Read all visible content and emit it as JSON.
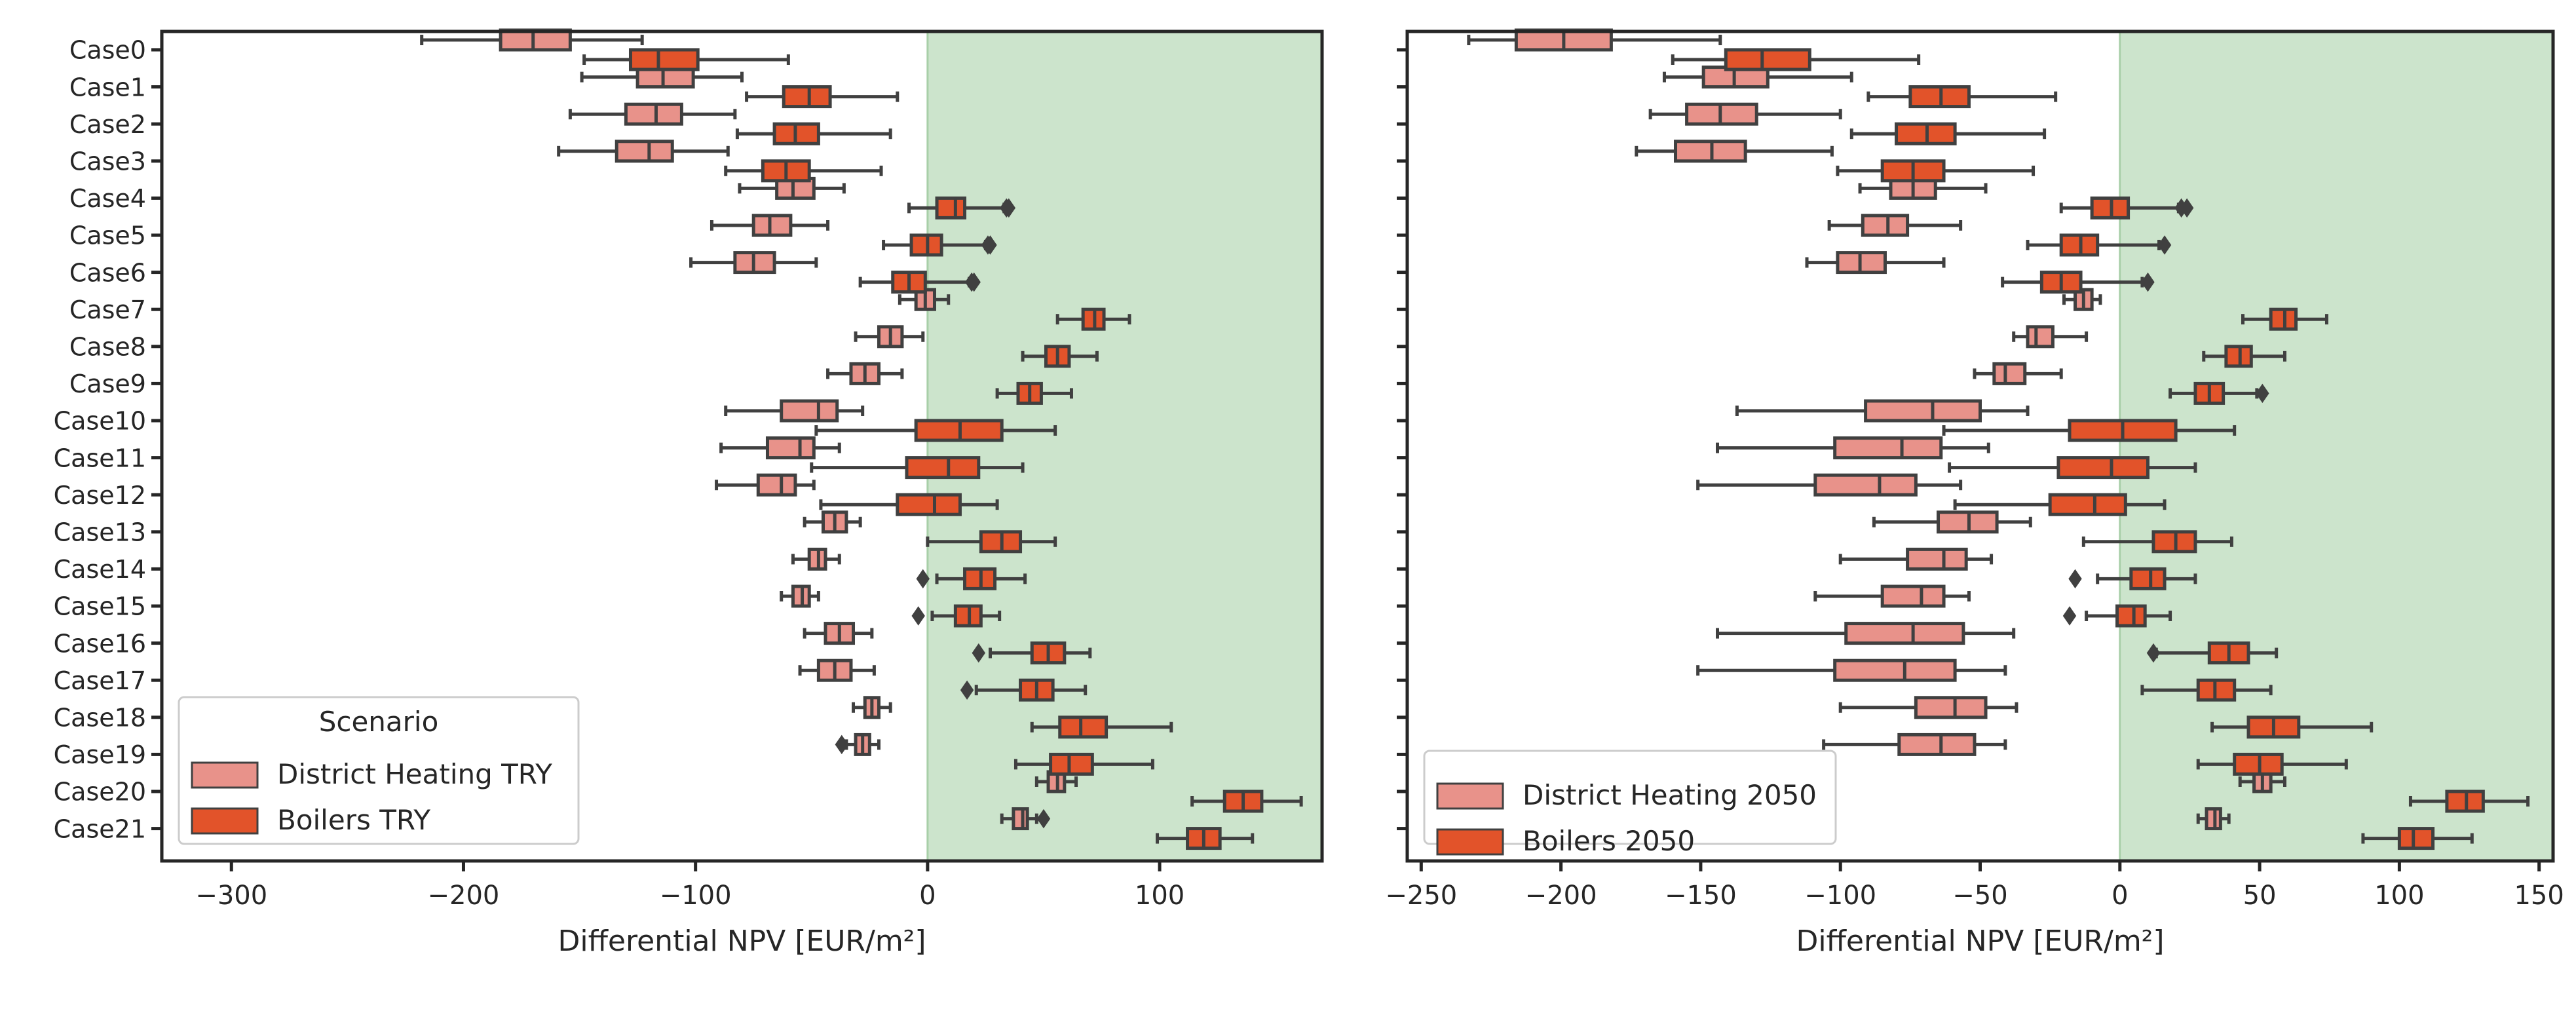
{
  "colors": {
    "district_heating": "#E8928A",
    "boilers": "#E2532A",
    "edge": "#404040",
    "positive_region": "#CCE4CC",
    "axis": "#262626"
  },
  "legend_title": "Scenario",
  "chart_data": [
    {
      "type": "box",
      "orientation": "horizontal",
      "xlabel": "Differential NPV [EUR/m²]",
      "xlim": [
        -330,
        170
      ],
      "xticks": [
        -300,
        -200,
        -100,
        0,
        100
      ],
      "xtick_labels": [
        "−300",
        "−200",
        "−100",
        "0",
        "100"
      ],
      "shaded_region": [
        0,
        170
      ],
      "legend_title": "Scenario",
      "legend_position": "lower-left",
      "categories": [
        "Case0",
        "Case1",
        "Case2",
        "Case3",
        "Case4",
        "Case5",
        "Case6",
        "Case7",
        "Case8",
        "Case9",
        "Case10",
        "Case11",
        "Case12",
        "Case13",
        "Case14",
        "Case15",
        "Case16",
        "Case17",
        "Case18",
        "Case19",
        "Case20",
        "Case21"
      ],
      "series": [
        {
          "name": "District Heating TRY",
          "color_key": "district_heating",
          "boxes": [
            {
              "whislo": -218,
              "q1": -184,
              "med": -170,
              "q3": -154,
              "whishi": -123,
              "fliers": []
            },
            {
              "whislo": -149,
              "q1": -125,
              "med": -114,
              "q3": -101,
              "whishi": -80,
              "fliers": []
            },
            {
              "whislo": -154,
              "q1": -130,
              "med": -117,
              "q3": -106,
              "whishi": -83,
              "fliers": []
            },
            {
              "whislo": -159,
              "q1": -134,
              "med": -120,
              "q3": -110,
              "whishi": -86,
              "fliers": []
            },
            {
              "whislo": -81,
              "q1": -65,
              "med": -58,
              "q3": -49,
              "whishi": -36,
              "fliers": []
            },
            {
              "whislo": -93,
              "q1": -75,
              "med": -68,
              "q3": -59,
              "whishi": -43,
              "fliers": []
            },
            {
              "whislo": -102,
              "q1": -83,
              "med": -75,
              "q3": -66,
              "whishi": -48,
              "fliers": []
            },
            {
              "whislo": -12,
              "q1": -5,
              "med": -1,
              "q3": 3,
              "whishi": 9,
              "fliers": []
            },
            {
              "whislo": -31,
              "q1": -21,
              "med": -16,
              "q3": -11,
              "whishi": -2,
              "fliers": []
            },
            {
              "whislo": -43,
              "q1": -33,
              "med": -27,
              "q3": -21,
              "whishi": -11,
              "fliers": []
            },
            {
              "whislo": -87,
              "q1": -63,
              "med": -47,
              "q3": -39,
              "whishi": -28,
              "fliers": []
            },
            {
              "whislo": -89,
              "q1": -69,
              "med": -55,
              "q3": -49,
              "whishi": -38,
              "fliers": []
            },
            {
              "whislo": -91,
              "q1": -73,
              "med": -63,
              "q3": -57,
              "whishi": -49,
              "fliers": []
            },
            {
              "whislo": -53,
              "q1": -45,
              "med": -40,
              "q3": -35,
              "whishi": -29,
              "fliers": []
            },
            {
              "whislo": -58,
              "q1": -51,
              "med": -47,
              "q3": -44,
              "whishi": -38,
              "fliers": []
            },
            {
              "whislo": -63,
              "q1": -58,
              "med": -54,
              "q3": -51,
              "whishi": -47,
              "fliers": []
            },
            {
              "whislo": -53,
              "q1": -44,
              "med": -38,
              "q3": -32,
              "whishi": -24,
              "fliers": []
            },
            {
              "whislo": -55,
              "q1": -47,
              "med": -40,
              "q3": -33,
              "whishi": -23,
              "fliers": []
            },
            {
              "whislo": -32,
              "q1": -27,
              "med": -24,
              "q3": -21,
              "whishi": -16,
              "fliers": []
            },
            {
              "whislo": -35,
              "q1": -31,
              "med": -28,
              "q3": -25,
              "whishi": -21,
              "fliers": [
                -37
              ]
            },
            {
              "whislo": 47,
              "q1": 52,
              "med": 56,
              "q3": 59,
              "whishi": 64,
              "fliers": []
            },
            {
              "whislo": 32,
              "q1": 37,
              "med": 41,
              "q3": 43,
              "whishi": 47,
              "fliers": [
                50
              ]
            }
          ]
        },
        {
          "name": "Boilers TRY",
          "color_key": "boilers",
          "boxes": [
            {
              "whislo": -148,
              "q1": -128,
              "med": -116,
              "q3": -99,
              "whishi": -60,
              "fliers": []
            },
            {
              "whislo": -78,
              "q1": -62,
              "med": -51,
              "q3": -42,
              "whishi": -13,
              "fliers": []
            },
            {
              "whislo": -82,
              "q1": -66,
              "med": -57,
              "q3": -47,
              "whishi": -16,
              "fliers": []
            },
            {
              "whislo": -87,
              "q1": -71,
              "med": -61,
              "q3": -51,
              "whishi": -20,
              "fliers": []
            },
            {
              "whislo": -8,
              "q1": 4,
              "med": 12,
              "q3": 16,
              "whishi": 33,
              "fliers": [
                34,
                35
              ]
            },
            {
              "whislo": -19,
              "q1": -7,
              "med": 0,
              "q3": 6,
              "whishi": 25,
              "fliers": [
                26,
                27
              ]
            },
            {
              "whislo": -29,
              "q1": -15,
              "med": -8,
              "q3": -1,
              "whishi": 18,
              "fliers": [
                19,
                20
              ]
            },
            {
              "whislo": 56,
              "q1": 67,
              "med": 72,
              "q3": 76,
              "whishi": 87,
              "fliers": []
            },
            {
              "whislo": 41,
              "q1": 51,
              "med": 56,
              "q3": 61,
              "whishi": 73,
              "fliers": []
            },
            {
              "whislo": 30,
              "q1": 39,
              "med": 44,
              "q3": 49,
              "whishi": 62,
              "fliers": []
            },
            {
              "whislo": -48,
              "q1": -5,
              "med": 14,
              "q3": 32,
              "whishi": 55,
              "fliers": []
            },
            {
              "whislo": -50,
              "q1": -9,
              "med": 9,
              "q3": 22,
              "whishi": 41,
              "fliers": []
            },
            {
              "whislo": -46,
              "q1": -13,
              "med": 3,
              "q3": 14,
              "whishi": 30,
              "fliers": []
            },
            {
              "whislo": 0,
              "q1": 23,
              "med": 32,
              "q3": 40,
              "whishi": 55,
              "fliers": []
            },
            {
              "whislo": 4,
              "q1": 16,
              "med": 23,
              "q3": 29,
              "whishi": 42,
              "fliers": [
                -2
              ]
            },
            {
              "whislo": 2,
              "q1": 12,
              "med": 18,
              "q3": 23,
              "whishi": 31,
              "fliers": [
                -4
              ]
            },
            {
              "whislo": 27,
              "q1": 45,
              "med": 52,
              "q3": 59,
              "whishi": 70,
              "fliers": [
                22
              ]
            },
            {
              "whislo": 21,
              "q1": 40,
              "med": 47,
              "q3": 54,
              "whishi": 68,
              "fliers": [
                17
              ]
            },
            {
              "whislo": 45,
              "q1": 57,
              "med": 66,
              "q3": 77,
              "whishi": 105,
              "fliers": []
            },
            {
              "whislo": 38,
              "q1": 53,
              "med": 61,
              "q3": 71,
              "whishi": 97,
              "fliers": []
            },
            {
              "whislo": 114,
              "q1": 128,
              "med": 136,
              "q3": 144,
              "whishi": 161,
              "fliers": []
            },
            {
              "whislo": 99,
              "q1": 112,
              "med": 119,
              "q3": 126,
              "whishi": 140,
              "fliers": []
            }
          ]
        }
      ]
    },
    {
      "type": "box",
      "orientation": "horizontal",
      "xlabel": "Differential NPV [EUR/m²]",
      "xlim": [
        -255,
        155
      ],
      "xticks": [
        -250,
        -200,
        -150,
        -100,
        -50,
        0,
        50,
        100,
        150
      ],
      "xtick_labels": [
        "−250",
        "−200",
        "−150",
        "−100",
        "−50",
        "0",
        "50",
        "100",
        "150"
      ],
      "shaded_region": [
        0,
        155
      ],
      "legend_position": "lower-left",
      "categories": [
        "Case0",
        "Case1",
        "Case2",
        "Case3",
        "Case4",
        "Case5",
        "Case6",
        "Case7",
        "Case8",
        "Case9",
        "Case10",
        "Case11",
        "Case12",
        "Case13",
        "Case14",
        "Case15",
        "Case16",
        "Case17",
        "Case18",
        "Case19",
        "Case20",
        "Case21"
      ],
      "series": [
        {
          "name": "District Heating 2050",
          "color_key": "district_heating",
          "boxes": [
            {
              "whislo": -233,
              "q1": -216,
              "med": -199,
              "q3": -182,
              "whishi": -143,
              "fliers": []
            },
            {
              "whislo": -163,
              "q1": -149,
              "med": -138,
              "q3": -126,
              "whishi": -96,
              "fliers": []
            },
            {
              "whislo": -168,
              "q1": -155,
              "med": -143,
              "q3": -130,
              "whishi": -100,
              "fliers": []
            },
            {
              "whislo": -173,
              "q1": -159,
              "med": -146,
              "q3": -134,
              "whishi": -103,
              "fliers": []
            },
            {
              "whislo": -93,
              "q1": -82,
              "med": -74,
              "q3": -66,
              "whishi": -48,
              "fliers": []
            },
            {
              "whislo": -104,
              "q1": -92,
              "med": -83,
              "q3": -76,
              "whishi": -57,
              "fliers": []
            },
            {
              "whislo": -112,
              "q1": -101,
              "med": -93,
              "q3": -84,
              "whishi": -63,
              "fliers": []
            },
            {
              "whislo": -20,
              "q1": -16,
              "med": -13,
              "q3": -10,
              "whishi": -7,
              "fliers": []
            },
            {
              "whislo": -38,
              "q1": -33,
              "med": -30,
              "q3": -24,
              "whishi": -12,
              "fliers": []
            },
            {
              "whislo": -52,
              "q1": -45,
              "med": -41,
              "q3": -34,
              "whishi": -21,
              "fliers": []
            },
            {
              "whislo": -137,
              "q1": -91,
              "med": -67,
              "q3": -50,
              "whishi": -33,
              "fliers": []
            },
            {
              "whislo": -144,
              "q1": -102,
              "med": -78,
              "q3": -64,
              "whishi": -47,
              "fliers": []
            },
            {
              "whislo": -151,
              "q1": -109,
              "med": -86,
              "q3": -73,
              "whishi": -57,
              "fliers": []
            },
            {
              "whislo": -88,
              "q1": -65,
              "med": -54,
              "q3": -44,
              "whishi": -32,
              "fliers": []
            },
            {
              "whislo": -100,
              "q1": -76,
              "med": -63,
              "q3": -55,
              "whishi": -46,
              "fliers": []
            },
            {
              "whislo": -109,
              "q1": -85,
              "med": -71,
              "q3": -63,
              "whishi": -54,
              "fliers": []
            },
            {
              "whislo": -144,
              "q1": -98,
              "med": -74,
              "q3": -56,
              "whishi": -38,
              "fliers": []
            },
            {
              "whislo": -151,
              "q1": -102,
              "med": -77,
              "q3": -59,
              "whishi": -41,
              "fliers": []
            },
            {
              "whislo": -100,
              "q1": -73,
              "med": -59,
              "q3": -48,
              "whishi": -37,
              "fliers": []
            },
            {
              "whislo": -106,
              "q1": -79,
              "med": -64,
              "q3": -52,
              "whishi": -41,
              "fliers": []
            },
            {
              "whislo": 43,
              "q1": 48,
              "med": 51,
              "q3": 54,
              "whishi": 59,
              "fliers": []
            },
            {
              "whislo": 28,
              "q1": 31,
              "med": 34,
              "q3": 36,
              "whishi": 39,
              "fliers": []
            }
          ]
        },
        {
          "name": "Boilers 2050",
          "color_key": "boilers",
          "boxes": [
            {
              "whislo": -160,
              "q1": -141,
              "med": -128,
              "q3": -111,
              "whishi": -72,
              "fliers": []
            },
            {
              "whislo": -90,
              "q1": -75,
              "med": -64,
              "q3": -54,
              "whishi": -23,
              "fliers": []
            },
            {
              "whislo": -96,
              "q1": -80,
              "med": -69,
              "q3": -59,
              "whishi": -27,
              "fliers": []
            },
            {
              "whislo": -101,
              "q1": -85,
              "med": -74,
              "q3": -63,
              "whishi": -31,
              "fliers": []
            },
            {
              "whislo": -21,
              "q1": -10,
              "med": -3,
              "q3": 3,
              "whishi": 21,
              "fliers": [
                22,
                24
              ]
            },
            {
              "whislo": -33,
              "q1": -21,
              "med": -14,
              "q3": -8,
              "whishi": 14,
              "fliers": [
                16
              ]
            },
            {
              "whislo": -42,
              "q1": -28,
              "med": -21,
              "q3": -14,
              "whishi": 8,
              "fliers": [
                10
              ]
            },
            {
              "whislo": 44,
              "q1": 54,
              "med": 59,
              "q3": 63,
              "whishi": 74,
              "fliers": []
            },
            {
              "whislo": 30,
              "q1": 38,
              "med": 43,
              "q3": 47,
              "whishi": 59,
              "fliers": []
            },
            {
              "whislo": 18,
              "q1": 27,
              "med": 32,
              "q3": 37,
              "whishi": 49,
              "fliers": [
                51
              ]
            },
            {
              "whislo": -63,
              "q1": -18,
              "med": 1,
              "q3": 20,
              "whishi": 41,
              "fliers": []
            },
            {
              "whislo": -61,
              "q1": -22,
              "med": -3,
              "q3": 10,
              "whishi": 27,
              "fliers": []
            },
            {
              "whislo": -59,
              "q1": -25,
              "med": -9,
              "q3": 2,
              "whishi": 16,
              "fliers": []
            },
            {
              "whislo": -13,
              "q1": 12,
              "med": 20,
              "q3": 27,
              "whishi": 40,
              "fliers": []
            },
            {
              "whislo": -8,
              "q1": 4,
              "med": 11,
              "q3": 16,
              "whishi": 27,
              "fliers": [
                -16
              ]
            },
            {
              "whislo": -12,
              "q1": -1,
              "med": 5,
              "q3": 9,
              "whishi": 18,
              "fliers": [
                -18
              ]
            },
            {
              "whislo": 13,
              "q1": 32,
              "med": 39,
              "q3": 46,
              "whishi": 56,
              "fliers": [
                12
              ]
            },
            {
              "whislo": 8,
              "q1": 28,
              "med": 34,
              "q3": 41,
              "whishi": 54,
              "fliers": []
            },
            {
              "whislo": 33,
              "q1": 46,
              "med": 55,
              "q3": 64,
              "whishi": 90,
              "fliers": []
            },
            {
              "whislo": 28,
              "q1": 41,
              "med": 50,
              "q3": 58,
              "whishi": 81,
              "fliers": []
            },
            {
              "whislo": 104,
              "q1": 117,
              "med": 124,
              "q3": 130,
              "whishi": 146,
              "fliers": []
            },
            {
              "whislo": 87,
              "q1": 100,
              "med": 105,
              "q3": 112,
              "whishi": 126,
              "fliers": []
            }
          ]
        }
      ]
    }
  ]
}
